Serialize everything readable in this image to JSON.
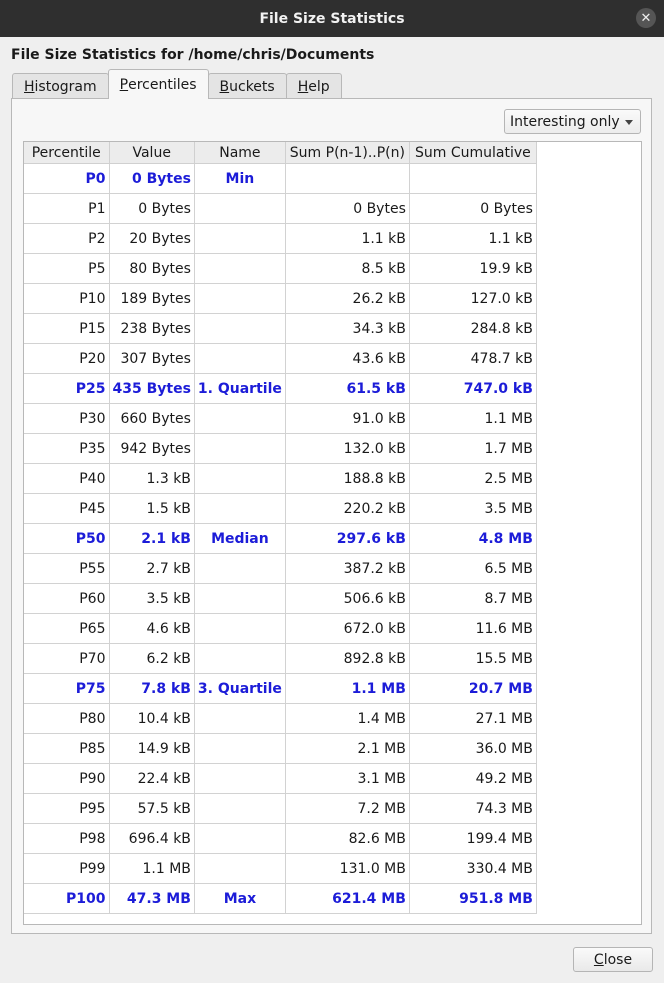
{
  "window": {
    "title": "File Size Statistics"
  },
  "heading": "File Size Statistics for /home/chris/Documents",
  "tabs": [
    {
      "pre": "",
      "key": "H",
      "post": "istogram",
      "active": false
    },
    {
      "pre": "",
      "key": "P",
      "post": "ercentiles",
      "active": true
    },
    {
      "pre": "",
      "key": "B",
      "post": "uckets",
      "active": false
    },
    {
      "pre": "",
      "key": "H",
      "post": "elp",
      "active": false
    }
  ],
  "filter": {
    "selected": "Interesting only"
  },
  "table": {
    "columns": [
      "Percentile",
      "Value",
      "Name",
      "Sum P(n-1)..P(n)",
      "Sum Cumulative"
    ],
    "rows": [
      {
        "p": "P0",
        "value": "0 Bytes",
        "name": "Min",
        "sum": "",
        "cum": "",
        "hl": true
      },
      {
        "p": "P1",
        "value": "0 Bytes",
        "name": "",
        "sum": "0 Bytes",
        "cum": "0 Bytes",
        "hl": false
      },
      {
        "p": "P2",
        "value": "20 Bytes",
        "name": "",
        "sum": "1.1 kB",
        "cum": "1.1 kB",
        "hl": false
      },
      {
        "p": "P5",
        "value": "80 Bytes",
        "name": "",
        "sum": "8.5 kB",
        "cum": "19.9 kB",
        "hl": false
      },
      {
        "p": "P10",
        "value": "189 Bytes",
        "name": "",
        "sum": "26.2 kB",
        "cum": "127.0 kB",
        "hl": false
      },
      {
        "p": "P15",
        "value": "238 Bytes",
        "name": "",
        "sum": "34.3 kB",
        "cum": "284.8 kB",
        "hl": false
      },
      {
        "p": "P20",
        "value": "307 Bytes",
        "name": "",
        "sum": "43.6 kB",
        "cum": "478.7 kB",
        "hl": false
      },
      {
        "p": "P25",
        "value": "435 Bytes",
        "name": "1. Quartile",
        "sum": "61.5 kB",
        "cum": "747.0 kB",
        "hl": true
      },
      {
        "p": "P30",
        "value": "660 Bytes",
        "name": "",
        "sum": "91.0 kB",
        "cum": "1.1 MB",
        "hl": false
      },
      {
        "p": "P35",
        "value": "942 Bytes",
        "name": "",
        "sum": "132.0 kB",
        "cum": "1.7 MB",
        "hl": false
      },
      {
        "p": "P40",
        "value": "1.3 kB",
        "name": "",
        "sum": "188.8 kB",
        "cum": "2.5 MB",
        "hl": false
      },
      {
        "p": "P45",
        "value": "1.5 kB",
        "name": "",
        "sum": "220.2 kB",
        "cum": "3.5 MB",
        "hl": false
      },
      {
        "p": "P50",
        "value": "2.1 kB",
        "name": "Median",
        "sum": "297.6 kB",
        "cum": "4.8 MB",
        "hl": true
      },
      {
        "p": "P55",
        "value": "2.7 kB",
        "name": "",
        "sum": "387.2 kB",
        "cum": "6.5 MB",
        "hl": false
      },
      {
        "p": "P60",
        "value": "3.5 kB",
        "name": "",
        "sum": "506.6 kB",
        "cum": "8.7 MB",
        "hl": false
      },
      {
        "p": "P65",
        "value": "4.6 kB",
        "name": "",
        "sum": "672.0 kB",
        "cum": "11.6 MB",
        "hl": false
      },
      {
        "p": "P70",
        "value": "6.2 kB",
        "name": "",
        "sum": "892.8 kB",
        "cum": "15.5 MB",
        "hl": false
      },
      {
        "p": "P75",
        "value": "7.8 kB",
        "name": "3. Quartile",
        "sum": "1.1 MB",
        "cum": "20.7 MB",
        "hl": true
      },
      {
        "p": "P80",
        "value": "10.4 kB",
        "name": "",
        "sum": "1.4 MB",
        "cum": "27.1 MB",
        "hl": false
      },
      {
        "p": "P85",
        "value": "14.9 kB",
        "name": "",
        "sum": "2.1 MB",
        "cum": "36.0 MB",
        "hl": false
      },
      {
        "p": "P90",
        "value": "22.4 kB",
        "name": "",
        "sum": "3.1 MB",
        "cum": "49.2 MB",
        "hl": false
      },
      {
        "p": "P95",
        "value": "57.5 kB",
        "name": "",
        "sum": "7.2 MB",
        "cum": "74.3 MB",
        "hl": false
      },
      {
        "p": "P98",
        "value": "696.4 kB",
        "name": "",
        "sum": "82.6 MB",
        "cum": "199.4 MB",
        "hl": false
      },
      {
        "p": "P99",
        "value": "1.1 MB",
        "name": "",
        "sum": "131.0 MB",
        "cum": "330.4 MB",
        "hl": false
      },
      {
        "p": "P100",
        "value": "47.3 MB",
        "name": "Max",
        "sum": "621.4 MB",
        "cum": "951.8 MB",
        "hl": true
      }
    ]
  },
  "close_button": {
    "pre": "",
    "key": "C",
    "post": "lose"
  },
  "icons": {
    "window_close": "close-icon",
    "combo_arrow": "chevron-down-icon"
  },
  "colors": {
    "highlight": "#1c1cd8",
    "titlebar": "#2f2f2f"
  }
}
